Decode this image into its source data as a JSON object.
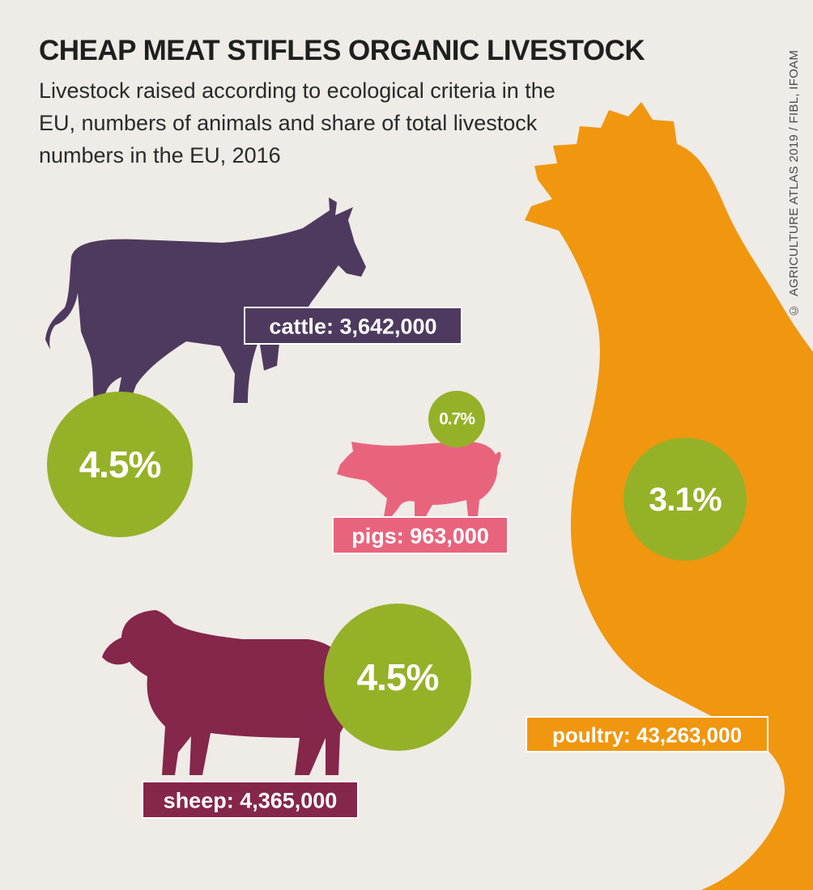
{
  "header": {
    "title": "CHEAP MEAT STIFLES ORGANIC LIVESTOCK",
    "subtitle": "Livestock raised according to ecological criteria in the EU, numbers of animals and share of total livestock numbers in the EU, 2016"
  },
  "credit": {
    "symbol": "©",
    "text": "AGRICULTURE ATLAS 2019 / FIBL, IFOAM"
  },
  "colors": {
    "background": "#efebe6",
    "cattle": "#4e3a5e",
    "pigs": "#e8647d",
    "sheep": "#85264b",
    "poultry": "#f0960f",
    "share_circle": "#95b128",
    "share_text": "#ffffff"
  },
  "chart_data": {
    "type": "pictogram",
    "title": "CHEAP MEAT STIFLES ORGANIC LIVESTOCK",
    "series": [
      {
        "name": "cattle",
        "label": "cattle: 3,642,000",
        "animals": 3642000,
        "share_label": "4.5%",
        "share_percent": 4.5,
        "icon": "cattle-icon"
      },
      {
        "name": "pigs",
        "label": "pigs: 963,000",
        "animals": 963000,
        "share_label": "0.7%",
        "share_percent": 0.7,
        "icon": "pig-icon"
      },
      {
        "name": "sheep",
        "label": "sheep: 4,365,000",
        "animals": 4365000,
        "share_label": "4.5%",
        "share_percent": 4.5,
        "icon": "sheep-icon"
      },
      {
        "name": "poultry",
        "label": "poultry: 43,263,000",
        "animals": 43263000,
        "share_label": "3.1%",
        "share_percent": 3.1,
        "icon": "chicken-icon"
      }
    ]
  }
}
